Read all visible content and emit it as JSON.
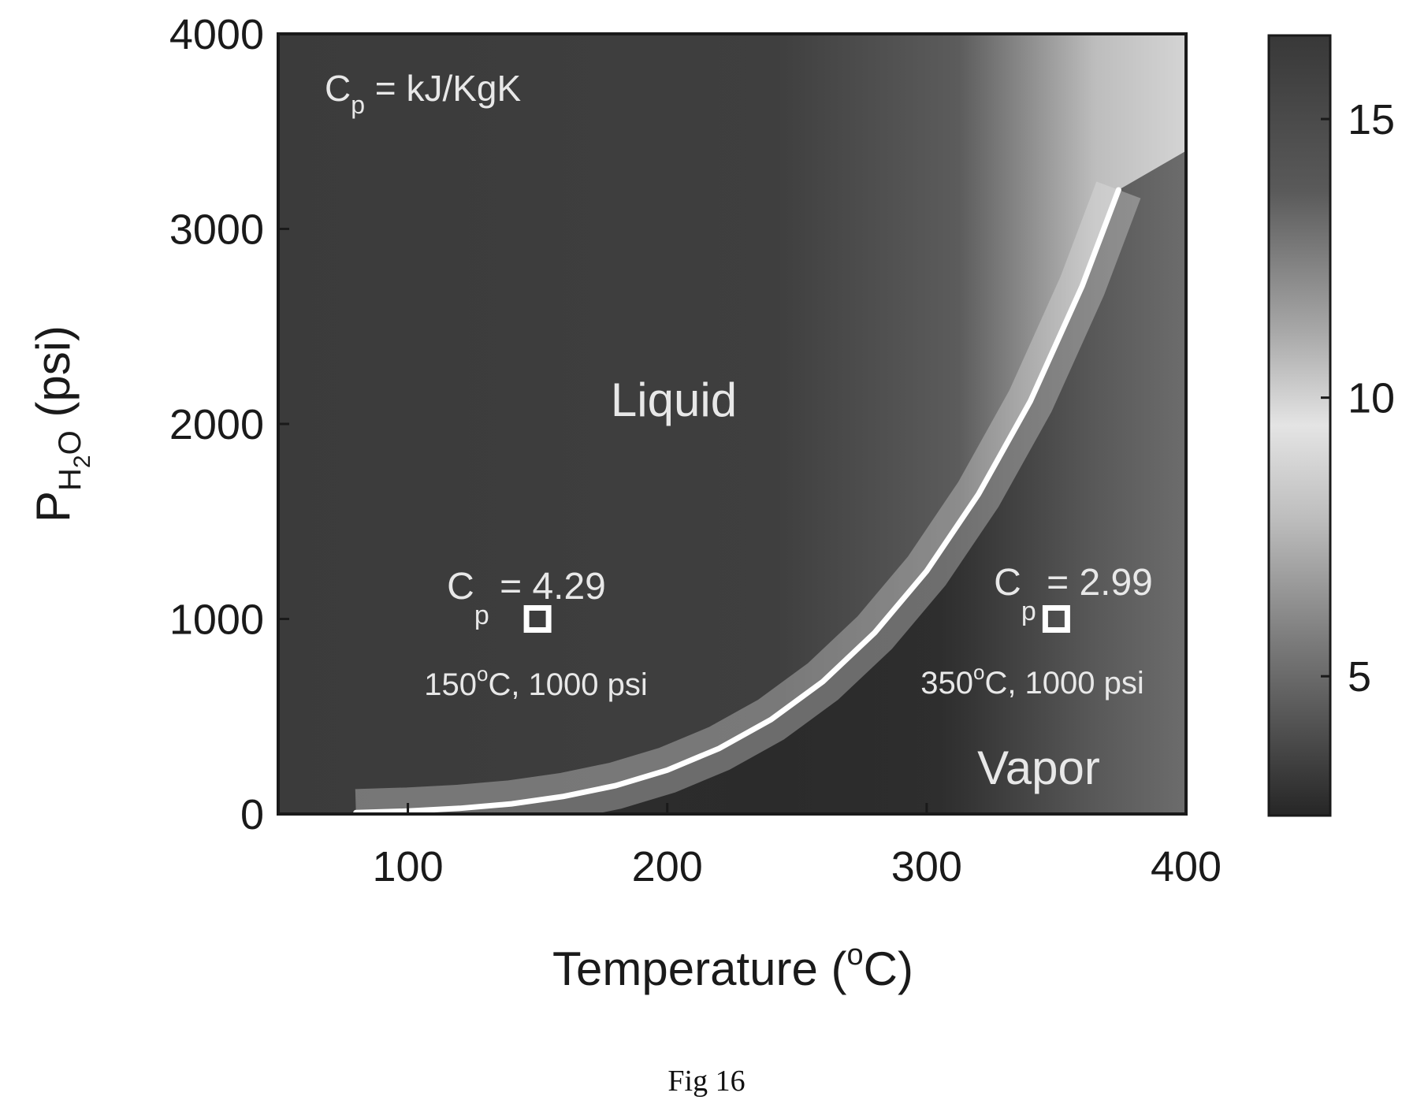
{
  "chart_data": {
    "type": "heatmap",
    "title": "",
    "xlabel": "Temperature (°C)",
    "xlabel_parts": {
      "pre": "Temperature (",
      "sup": "o",
      "post": "C)"
    },
    "ylabel_parts": {
      "base": "P",
      "sub1": "H",
      "sub2": "2",
      "sub3": "O",
      "post": " (psi)"
    },
    "xlim": [
      50,
      400
    ],
    "ylim": [
      0,
      4000
    ],
    "x_ticks": [
      100,
      200,
      300,
      400
    ],
    "y_ticks": [
      0,
      1000,
      2000,
      3000,
      4000
    ],
    "colorbar": {
      "range": [
        2.5,
        16.5
      ],
      "ticks": [
        5,
        10,
        15
      ]
    },
    "grid": false,
    "unit_note": {
      "pre": "C",
      "sub": "p",
      "post": " = kJ/KgK"
    },
    "saturation_curve": {
      "name": "saturation",
      "x": [
        80,
        100,
        120,
        140,
        160,
        180,
        200,
        220,
        240,
        260,
        280,
        300,
        320,
        340,
        360,
        374
      ],
      "y": [
        7,
        15,
        29,
        52,
        90,
        145,
        225,
        336,
        484,
        679,
        930,
        1246,
        1640,
        2117,
        2708,
        3200
      ]
    },
    "regions": [
      {
        "label": "Liquid",
        "x": 160,
        "y": 2000
      },
      {
        "label": "Vapor",
        "x": 365,
        "y": 250
      }
    ],
    "points": [
      {
        "temp": 150,
        "pressure": 1000,
        "cp_pre": "C",
        "cp_sub": "p",
        "cp_value": " = 4.29",
        "caption_pre": "150",
        "caption_sup": "o",
        "caption_post": "C, 1000 psi"
      },
      {
        "temp": 350,
        "pressure": 1000,
        "cp_pre": "C",
        "cp_sub": "p",
        "cp_value": " = 2.99",
        "caption_pre": "350",
        "caption_sup": "o",
        "caption_post": "C, 1000 psi"
      }
    ]
  },
  "figure_caption": "Fig 16"
}
